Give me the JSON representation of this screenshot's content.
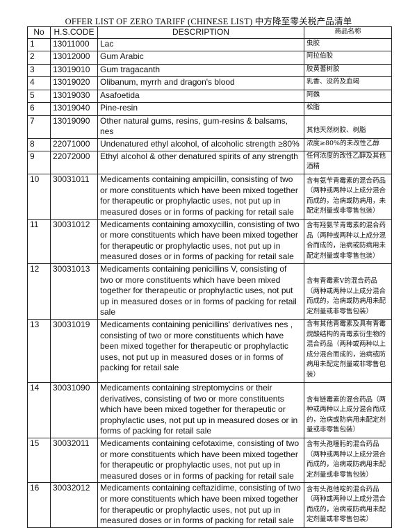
{
  "header": {
    "title": "OFFER LIST OF ZERO TARIFF (CHINESE LIST) 中方降至零关税产品清单"
  },
  "table": {
    "columns": [
      "No",
      "H.S.CODE",
      "DESCRIPTION",
      "商品名称"
    ],
    "rows": [
      [
        "1",
        "13011000",
        "Lac",
        "虫胶"
      ],
      [
        "2",
        "13012000",
        "Gum Arabic",
        "阿拉伯胶"
      ],
      [
        "3",
        "13019010",
        "Gum tragacanth",
        "胶黄蓍树胶"
      ],
      [
        "4",
        "13019020",
        "Olibanum, myrrh and dragon's blood",
        "乳香、没药及血竭"
      ],
      [
        "5",
        "13019030",
        "Asafoetida",
        "阿魏"
      ],
      [
        "6",
        "13019040",
        "Pine-resin",
        "松脂"
      ],
      [
        "7",
        "13019090",
        "Other natural gums, resins, gum-resins & balsams, nes",
        "其他天然树胶、树脂"
      ],
      [
        "8",
        "22071000",
        "Undenatured ethyl alcohol, of alcoholic strength ≥80%",
        "浓度≥80%的未改性乙醇"
      ],
      [
        "9",
        "22072000",
        "Ethyl alcohol & other denatured spirits of any strength",
        "任何浓度的改性乙醇及其他酒精"
      ],
      [
        "10",
        "30031011",
        "Medicaments containing ampicillin, consisting of two or more constituents which have been mixed together for therapeutic or prophylactic uses, not put up in measured doses or in forms of packing for retail sale",
        "含有氨苄青霉素的混合药品（两种或两种以上成分混合而成的，治病或防病用，未配定剂量或非零售包装）"
      ],
      [
        "11",
        "30031012",
        "Medicaments containing amoxycillin, consisting of two or more constituents which have been mixed together for therapeutic or prophylactic uses, not put up in measured doses or in forms of packing for retail sale",
        "含有羟氨苄青霉素的混合药品（两种或两种以上成分混合而成的，治病或防病用未配定剂量或非零售包装）"
      ],
      [
        "12",
        "30031013",
        "Medicaments containing penicillins V, consisting of two or more constituents which have been mixed together for therapeutic or prophylactic uses, not put up in measured doses or in forms of packing for retail sale",
        "含有青霉素V的混合药品（两种或两种以上成分混合而成的，治病或防病用未配定剂量或非零售包装）"
      ],
      [
        "13",
        "30031019",
        "Medicaments containing penicillins' derivatives nes , consisting of two or more constituents which have been mixed together for therapeutic or prophylactic uses, not put up in measured doses or in forms of packing for retail sale",
        "含有其他青霉素及具有青霉烷酸结构的青霉素衍生物的混合药品（两种或两种以上成分混合而成的，治病或防病用未配定剂量或非零售包装）"
      ],
      [
        "14",
        "30031090",
        "Medicaments containing streptomycins or their derivatives, consisting of two or more constituents which have been mixed together for therapeutic or prophylactic uses, not put up in measured doses or in forms of packing for retail sale",
        "含有链霉素的混合药品（两种或两种以上成分混合而成的，治病或防病用未配定剂量或非零售包装）"
      ],
      [
        "15",
        "30032011",
        "Medicaments containing cefotaxime, consisting of two or more constituents which have been mixed together for therapeutic or prophylactic uses, not put up in measured doses or in forms of packing for retail sale",
        "含有头孢噻肟的混合药品（两种或两种以上成分混合而成的，治病或防病用未配定剂量或非零售包装）"
      ],
      [
        "16",
        "30032012",
        "Medicaments containing ceftazidime, consisting of two or more constituents which have been mixed together for therapeutic or prophylactic uses, not put up in measured doses or in forms of packing for retail sale",
        "含有头孢他啶的混合药品（两种或两种以上成分混合而成的，治病或防病用未配定剂量或非零售包装）"
      ]
    ]
  }
}
